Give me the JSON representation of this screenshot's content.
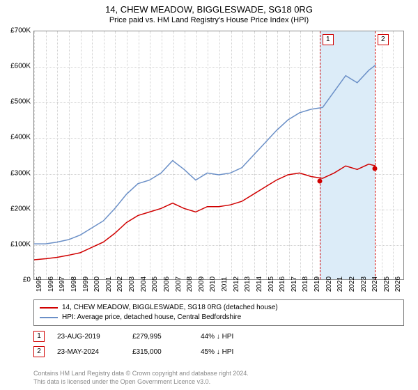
{
  "title": "14, CHEW MEADOW, BIGGLESWADE, SG18 0RG",
  "subtitle": "Price paid vs. HM Land Registry's House Price Index (HPI)",
  "chart": {
    "type": "line",
    "background_color": "#ffffff",
    "grid_color": "#d0d0d0",
    "border_color": "#888888",
    "xlim": [
      1995,
      2027
    ],
    "ylim": [
      0,
      700000
    ],
    "ytick_step": 100000,
    "yticks_label": [
      "£0",
      "£100K",
      "£200K",
      "£300K",
      "£400K",
      "£500K",
      "£600K",
      "£700K"
    ],
    "xticks": [
      1995,
      1996,
      1997,
      1998,
      1999,
      2000,
      2001,
      2002,
      2003,
      2004,
      2005,
      2006,
      2007,
      2008,
      2009,
      2010,
      2011,
      2012,
      2013,
      2014,
      2015,
      2016,
      2017,
      2018,
      2019,
      2020,
      2021,
      2022,
      2023,
      2024,
      2025,
      2026
    ],
    "label_fontsize": 10,
    "line_width": 1.5,
    "series": [
      {
        "name": "price_paid",
        "color": "#d00000",
        "data": [
          [
            1995,
            55000
          ],
          [
            1996,
            58000
          ],
          [
            1997,
            62000
          ],
          [
            1998,
            68000
          ],
          [
            1999,
            75000
          ],
          [
            2000,
            90000
          ],
          [
            2001,
            105000
          ],
          [
            2002,
            130000
          ],
          [
            2003,
            160000
          ],
          [
            2004,
            180000
          ],
          [
            2005,
            190000
          ],
          [
            2006,
            200000
          ],
          [
            2007,
            215000
          ],
          [
            2008,
            200000
          ],
          [
            2009,
            190000
          ],
          [
            2010,
            205000
          ],
          [
            2011,
            205000
          ],
          [
            2012,
            210000
          ],
          [
            2013,
            220000
          ],
          [
            2014,
            240000
          ],
          [
            2015,
            260000
          ],
          [
            2016,
            280000
          ],
          [
            2017,
            295000
          ],
          [
            2018,
            300000
          ],
          [
            2019,
            290000
          ],
          [
            2020,
            285000
          ],
          [
            2021,
            300000
          ],
          [
            2022,
            320000
          ],
          [
            2023,
            310000
          ],
          [
            2024,
            325000
          ],
          [
            2024.6,
            320000
          ]
        ]
      },
      {
        "name": "hpi",
        "color": "#6a8fc7",
        "data": [
          [
            1995,
            100000
          ],
          [
            1996,
            100000
          ],
          [
            1997,
            105000
          ],
          [
            1998,
            112000
          ],
          [
            1999,
            125000
          ],
          [
            2000,
            145000
          ],
          [
            2001,
            165000
          ],
          [
            2002,
            200000
          ],
          [
            2003,
            240000
          ],
          [
            2004,
            270000
          ],
          [
            2005,
            280000
          ],
          [
            2006,
            300000
          ],
          [
            2007,
            335000
          ],
          [
            2008,
            310000
          ],
          [
            2009,
            280000
          ],
          [
            2010,
            300000
          ],
          [
            2011,
            295000
          ],
          [
            2012,
            300000
          ],
          [
            2013,
            315000
          ],
          [
            2014,
            350000
          ],
          [
            2015,
            385000
          ],
          [
            2016,
            420000
          ],
          [
            2017,
            450000
          ],
          [
            2018,
            470000
          ],
          [
            2019,
            480000
          ],
          [
            2020,
            485000
          ],
          [
            2021,
            530000
          ],
          [
            2022,
            575000
          ],
          [
            2023,
            555000
          ],
          [
            2024,
            590000
          ],
          [
            2024.6,
            605000
          ]
        ]
      }
    ],
    "markers": [
      {
        "n": "1",
        "x": 2019.65,
        "y": 279995,
        "band_end": 2024.4
      },
      {
        "n": "2",
        "x": 2024.4,
        "y": 315000,
        "band_end": null
      }
    ]
  },
  "legend": {
    "items": [
      {
        "color": "#d00000",
        "label": "14, CHEW MEADOW, BIGGLESWADE, SG18 0RG (detached house)"
      },
      {
        "color": "#6a8fc7",
        "label": "HPI: Average price, detached house, Central Bedfordshire"
      }
    ]
  },
  "sales": [
    {
      "n": "1",
      "date": "23-AUG-2019",
      "price": "£279,995",
      "pct": "44% ↓ HPI"
    },
    {
      "n": "2",
      "date": "23-MAY-2024",
      "price": "£315,000",
      "pct": "45% ↓ HPI"
    }
  ],
  "footer1": "Contains HM Land Registry data © Crown copyright and database right 2024.",
  "footer2": "This data is licensed under the Open Government Licence v3.0."
}
